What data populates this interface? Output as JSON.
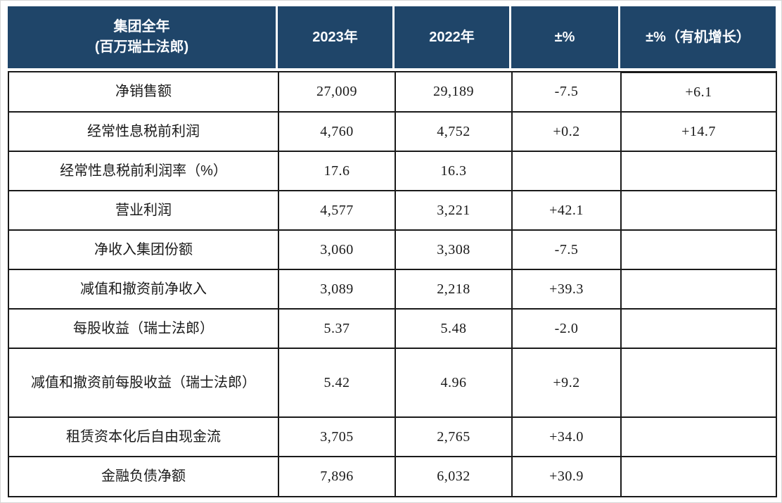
{
  "table": {
    "header": {
      "col1_line1": "集团全年",
      "col1_line2": "(百万瑞士法郎)",
      "col2": "2023年",
      "col3": "2022年",
      "col4": "±%",
      "col5": "±%（有机增长）"
    },
    "rows": [
      {
        "label": "净销售额",
        "y2023": "27,009",
        "y2022": "29,189",
        "pct": "-7.5",
        "organic": "+6.1"
      },
      {
        "label": "经常性息税前利润",
        "y2023": "4,760",
        "y2022": "4,752",
        "pct": "+0.2",
        "organic": "+14.7"
      },
      {
        "label": "经常性息税前利润率（%）",
        "y2023": "17.6",
        "y2022": "16.3",
        "pct": "",
        "organic": ""
      },
      {
        "label": "营业利润",
        "y2023": "4,577",
        "y2022": "3,221",
        "pct": "+42.1",
        "organic": ""
      },
      {
        "label": "净收入集团份额",
        "y2023": "3,060",
        "y2022": "3,308",
        "pct": "-7.5",
        "organic": ""
      },
      {
        "label": "减值和撤资前净收入",
        "y2023": "3,089",
        "y2022": "2,218",
        "pct": "+39.3",
        "organic": ""
      },
      {
        "label": "每股收益（瑞士法郎）",
        "y2023": "5.37",
        "y2022": "5.48",
        "pct": "-2.0",
        "organic": ""
      },
      {
        "label": "减值和撤资前每股收益（瑞士法郎）",
        "y2023": "5.42",
        "y2022": "4.96",
        "pct": "+9.2",
        "organic": ""
      },
      {
        "label": "租赁资本化后自由现金流",
        "y2023": "3,705",
        "y2022": "2,765",
        "pct": "+34.0",
        "organic": ""
      },
      {
        "label": "金融负债净额",
        "y2023": "7,896",
        "y2022": "6,032",
        "pct": "+30.9",
        "organic": ""
      }
    ],
    "colors": {
      "header_bg": "#1f4569",
      "border": "#1a1a1a",
      "header_text": "#fafcff",
      "body_text": "#1a1a1a"
    }
  }
}
